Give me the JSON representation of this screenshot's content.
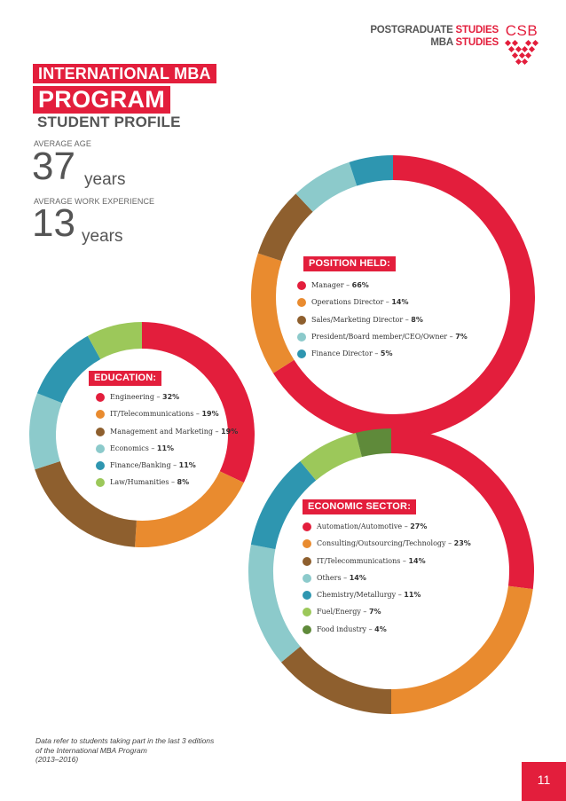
{
  "header": {
    "line1_prefix": "POSTGRADUATE",
    "line1_accent": "STUDIES",
    "line2_prefix": "MBA",
    "line2_accent": "STUDIES",
    "logo_text": "CSB"
  },
  "title": {
    "line1": "INTERNATIONAL MBA",
    "line2": "PROGRAM",
    "line3": "STUDENT PROFILE"
  },
  "stats": {
    "age_label": "AVERAGE AGE",
    "age_value": "37",
    "age_unit": "years",
    "exp_label": "AVERAGE WORK EXPERIENCE",
    "exp_value": "13",
    "exp_unit": "years"
  },
  "colors": {
    "red": "#e31e3c",
    "orange": "#e98b2f",
    "brown": "#8e5f2e",
    "light_teal": "#8ccacb",
    "teal": "#2e96b0",
    "light_green": "#9cc85a",
    "dark_green": "#5f8a3a"
  },
  "chart_data": [
    {
      "type": "pie",
      "title": "EDUCATION:",
      "series": [
        {
          "name": "Engineering",
          "value": 32,
          "label": "Engineering – ",
          "value_label": "32%",
          "color": "#e31e3c"
        },
        {
          "name": "IT/Telecommunications",
          "value": 19,
          "label": "IT/Telecommunications – ",
          "value_label": "19%",
          "color": "#e98b2f"
        },
        {
          "name": "Management and Marketing",
          "value": 19,
          "label": "Management and Marketing – ",
          "value_label": "19%",
          "color": "#8e5f2e"
        },
        {
          "name": "Economics",
          "value": 11,
          "label": "Economics – ",
          "value_label": "11%",
          "color": "#8ccacb"
        },
        {
          "name": "Finance/Banking",
          "value": 11,
          "label": "Finance/Banking – ",
          "value_label": "11%",
          "color": "#2e96b0"
        },
        {
          "name": "Law/Humanities",
          "value": 8,
          "label": "Law/Humanities – ",
          "value_label": "8%",
          "color": "#9cc85a"
        }
      ]
    },
    {
      "type": "pie",
      "title": "POSITION HELD:",
      "series": [
        {
          "name": "Manager",
          "value": 66,
          "label": "Manager – ",
          "value_label": "66%",
          "color": "#e31e3c"
        },
        {
          "name": "Operations Director",
          "value": 14,
          "label": "Operations Director – ",
          "value_label": "14%",
          "color": "#e98b2f"
        },
        {
          "name": "Sales/Marketing Director",
          "value": 8,
          "label": "Sales/Marketing Director – ",
          "value_label": "8%",
          "color": "#8e5f2e"
        },
        {
          "name": "President/Board member/CEO/Owner",
          "value": 7,
          "label": "President/Board member/CEO/Owner – ",
          "value_label": "7%",
          "color": "#8ccacb"
        },
        {
          "name": "Finance Director",
          "value": 5,
          "label": "Finance Director – ",
          "value_label": "5%",
          "color": "#2e96b0"
        }
      ]
    },
    {
      "type": "pie",
      "title": "ECONOMIC SECTOR:",
      "series": [
        {
          "name": "Automation/Automotive",
          "value": 27,
          "label": "Automation/Automotive – ",
          "value_label": "27%",
          "color": "#e31e3c"
        },
        {
          "name": "Consulting/Outsourcing/Technology",
          "value": 23,
          "label": "Consulting/Outsourcing/Technology – ",
          "value_label": "23%",
          "color": "#e98b2f"
        },
        {
          "name": "IT/Telecommunications",
          "value": 14,
          "label": "IT/Telecommunications – ",
          "value_label": "14%",
          "color": "#8e5f2e"
        },
        {
          "name": "Others",
          "value": 14,
          "label": "Others – ",
          "value_label": "14%",
          "color": "#8ccacb"
        },
        {
          "name": "Chemistry/Metallurgy",
          "value": 11,
          "label": "Chemistry/Metallurgy – ",
          "value_label": "11%",
          "color": "#2e96b0"
        },
        {
          "name": "Fuel/Energy",
          "value": 7,
          "label": "Fuel/Energy – ",
          "value_label": "7%",
          "color": "#9cc85a"
        },
        {
          "name": "Food industry",
          "value": 4,
          "label": "Food industry – ",
          "value_label": "4%",
          "color": "#5f8a3a"
        }
      ]
    }
  ],
  "footnote": {
    "line1": "Data refer to students taking part in the last 3 editions",
    "line2": "of the International MBA Program",
    "line3": "(2013–2016)"
  },
  "page_number": "11"
}
